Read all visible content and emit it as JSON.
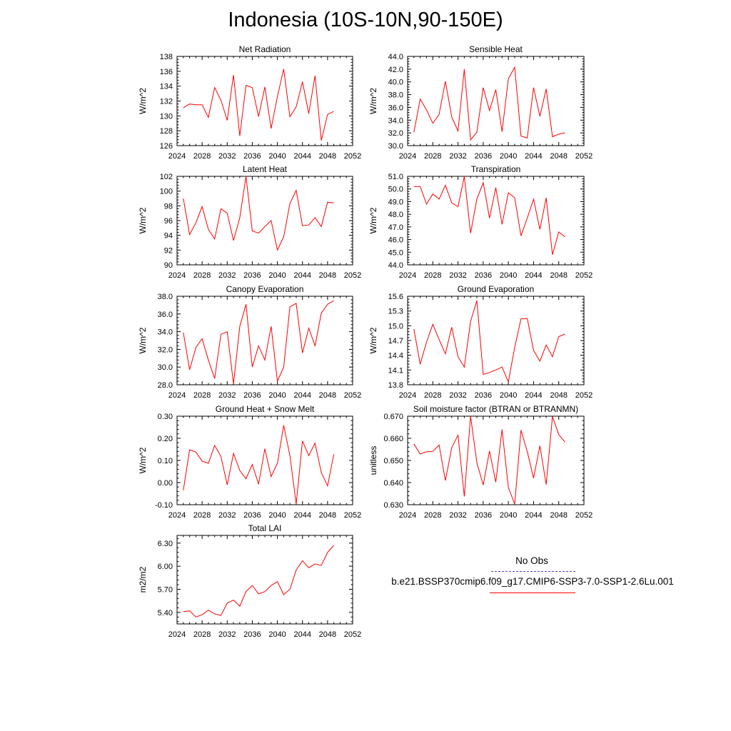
{
  "page_title": "Indonesia (10S-10N,90-150E)",
  "legend": {
    "obs_label": "No Obs",
    "obs_color": "#4a4ab0",
    "obs_style": "dashed",
    "run_label": "b.e21.BSSP370cmip6.f09_g17.CMIP6-SSP3-7.0-SSP1-2.6Lu.001",
    "run_color": "#ff0000"
  },
  "chart_data": [
    {
      "type": "line",
      "title": "Net Radiation",
      "ylabel": "W/m^2",
      "xlim": [
        2024,
        2052
      ],
      "xticks": [
        2024,
        2028,
        2032,
        2036,
        2040,
        2044,
        2048,
        2052
      ],
      "ylim": [
        126,
        138
      ],
      "yticks": [
        "126",
        "128",
        "130",
        "132",
        "134",
        "136",
        "138"
      ],
      "x": [
        2025,
        2026,
        2027,
        2028,
        2029,
        2030,
        2031,
        2032,
        2033,
        2034,
        2035,
        2036,
        2037,
        2038,
        2039,
        2040,
        2041,
        2042,
        2043,
        2044,
        2045,
        2046,
        2047,
        2048,
        2049
      ],
      "series": [
        {
          "values": [
            131.1,
            131.6,
            131.5,
            131.5,
            129.8,
            133.8,
            132.1,
            129.4,
            135.5,
            127.3,
            134.1,
            133.8,
            129.9,
            133.9,
            128.3,
            132.6,
            136.3,
            129.9,
            131.2,
            134.6,
            130.3,
            135.4,
            126.7,
            130.2,
            130.6
          ],
          "color": "#ff0000"
        }
      ]
    },
    {
      "type": "line",
      "title": "Sensible Heat",
      "ylabel": "W/m^2",
      "xlim": [
        2024,
        2052
      ],
      "xticks": [
        2024,
        2028,
        2032,
        2036,
        2040,
        2044,
        2048,
        2052
      ],
      "ylim": [
        30,
        44
      ],
      "yticks": [
        "30.0",
        "32.0",
        "34.0",
        "36.0",
        "38.0",
        "40.0",
        "42.0",
        "44.0"
      ],
      "x": [
        2025,
        2026,
        2027,
        2028,
        2029,
        2030,
        2031,
        2032,
        2033,
        2034,
        2035,
        2036,
        2037,
        2038,
        2039,
        2040,
        2041,
        2042,
        2043,
        2044,
        2045,
        2046,
        2047,
        2048,
        2049
      ],
      "series": [
        {
          "values": [
            32.1,
            37.3,
            35.6,
            33.5,
            34.9,
            40.1,
            34.5,
            32.3,
            42.0,
            30.9,
            32.1,
            39.1,
            35.5,
            38.8,
            32.2,
            40.5,
            42.3,
            31.5,
            31.2,
            39.1,
            34.6,
            38.9,
            31.4,
            31.8,
            32.0
          ],
          "color": "#ff0000"
        }
      ]
    },
    {
      "type": "line",
      "title": "Latent Heat",
      "ylabel": "W/m^2",
      "xlim": [
        2024,
        2052
      ],
      "xticks": [
        2024,
        2028,
        2032,
        2036,
        2040,
        2044,
        2048,
        2052
      ],
      "ylim": [
        90,
        102
      ],
      "yticks": [
        "90",
        "92",
        "94",
        "96",
        "98",
        "100",
        "102"
      ],
      "x": [
        2025,
        2026,
        2027,
        2028,
        2029,
        2030,
        2031,
        2032,
        2033,
        2034,
        2035,
        2036,
        2037,
        2038,
        2039,
        2040,
        2041,
        2042,
        2043,
        2044,
        2045,
        2046,
        2047,
        2048,
        2049
      ],
      "series": [
        {
          "values": [
            99.0,
            94.1,
            95.7,
            97.9,
            94.8,
            93.5,
            97.6,
            97.0,
            93.3,
            96.4,
            102.0,
            94.6,
            94.3,
            95.2,
            96.0,
            92.0,
            93.8,
            98.3,
            100.1,
            95.3,
            95.4,
            96.4,
            95.2,
            98.5,
            98.4
          ],
          "color": "#ff0000"
        }
      ]
    },
    {
      "type": "line",
      "title": "Transpiration",
      "ylabel": "W/m^2",
      "xlim": [
        2024,
        2052
      ],
      "xticks": [
        2024,
        2028,
        2032,
        2036,
        2040,
        2044,
        2048,
        2052
      ],
      "ylim": [
        44,
        51
      ],
      "yticks": [
        "44.0",
        "45.0",
        "46.0",
        "47.0",
        "48.0",
        "49.0",
        "50.0",
        "51.0"
      ],
      "x": [
        2025,
        2026,
        2027,
        2028,
        2029,
        2030,
        2031,
        2032,
        2033,
        2034,
        2035,
        2036,
        2037,
        2038,
        2039,
        2040,
        2041,
        2042,
        2043,
        2044,
        2045,
        2046,
        2047,
        2048,
        2049
      ],
      "series": [
        {
          "values": [
            50.2,
            50.2,
            48.8,
            49.6,
            49.2,
            50.3,
            48.9,
            48.6,
            51.0,
            46.5,
            49.2,
            50.5,
            47.7,
            50.1,
            47.2,
            49.7,
            49.3,
            46.3,
            47.7,
            49.2,
            46.8,
            49.3,
            44.8,
            46.6,
            46.2
          ],
          "color": "#ff0000"
        }
      ]
    },
    {
      "type": "line",
      "title": "Canopy Evaporation",
      "ylabel": "W/m^2",
      "xlim": [
        2024,
        2052
      ],
      "xticks": [
        2024,
        2028,
        2032,
        2036,
        2040,
        2044,
        2048,
        2052
      ],
      "ylim": [
        28,
        38
      ],
      "yticks": [
        "28.0",
        "30.0",
        "32.0",
        "34.0",
        "36.0",
        "38.0"
      ],
      "x": [
        2025,
        2026,
        2027,
        2028,
        2029,
        2030,
        2031,
        2032,
        2033,
        2034,
        2035,
        2036,
        2037,
        2038,
        2039,
        2040,
        2041,
        2042,
        2043,
        2044,
        2045,
        2046,
        2047,
        2048,
        2049
      ],
      "series": [
        {
          "values": [
            33.9,
            29.7,
            32.2,
            33.2,
            30.8,
            28.7,
            33.7,
            34.0,
            28.1,
            34.6,
            37.1,
            30.0,
            32.4,
            30.8,
            34.6,
            28.4,
            30.0,
            36.8,
            37.2,
            31.6,
            34.4,
            32.4,
            36.1,
            37.1,
            37.5
          ],
          "color": "#ff0000"
        }
      ]
    },
    {
      "type": "line",
      "title": "Ground Evaporation",
      "ylabel": "W/m^2",
      "xlim": [
        2024,
        2052
      ],
      "xticks": [
        2024,
        2028,
        2032,
        2036,
        2040,
        2044,
        2048,
        2052
      ],
      "ylim": [
        13.8,
        15.6
      ],
      "yticks": [
        "13.8",
        "14.1",
        "14.4",
        "14.7",
        "15.0",
        "15.3",
        "15.6"
      ],
      "x": [
        2025,
        2026,
        2027,
        2028,
        2029,
        2030,
        2031,
        2032,
        2033,
        2034,
        2035,
        2036,
        2037,
        2038,
        2039,
        2040,
        2041,
        2042,
        2043,
        2044,
        2045,
        2046,
        2047,
        2048,
        2049
      ],
      "series": [
        {
          "values": [
            14.93,
            14.22,
            14.67,
            15.03,
            14.72,
            14.43,
            14.97,
            14.37,
            14.16,
            15.09,
            15.51,
            14.01,
            14.05,
            14.1,
            14.16,
            13.86,
            14.56,
            15.14,
            15.15,
            14.5,
            14.28,
            14.61,
            14.37,
            14.78,
            14.83
          ],
          "color": "#ff0000"
        }
      ]
    },
    {
      "type": "line",
      "title": "Ground Heat + Snow Melt",
      "ylabel": "W/m^2",
      "xlim": [
        2024,
        2052
      ],
      "xticks": [
        2024,
        2028,
        2032,
        2036,
        2040,
        2044,
        2048,
        2052
      ],
      "ylim": [
        -0.1,
        0.3
      ],
      "yticks": [
        "-0.10",
        "0.00",
        "0.10",
        "0.20",
        "0.30"
      ],
      "x": [
        2025,
        2026,
        2027,
        2028,
        2029,
        2030,
        2031,
        2032,
        2033,
        2034,
        2035,
        2036,
        2037,
        2038,
        2039,
        2040,
        2041,
        2042,
        2043,
        2044,
        2045,
        2046,
        2047,
        2048,
        2049
      ],
      "series": [
        {
          "values": [
            -0.035,
            0.148,
            0.138,
            0.097,
            0.087,
            0.168,
            0.118,
            -0.01,
            0.132,
            0.055,
            0.017,
            0.082,
            -0.007,
            0.153,
            0.027,
            0.087,
            0.259,
            0.122,
            -0.097,
            0.188,
            0.122,
            0.178,
            0.045,
            -0.015,
            0.128
          ],
          "color": "#ff0000"
        }
      ]
    },
    {
      "type": "line",
      "title": "Soil moisture factor (BTRAN or BTRANMN)",
      "ylabel": "unitless",
      "xlim": [
        2024,
        2052
      ],
      "xticks": [
        2024,
        2028,
        2032,
        2036,
        2040,
        2044,
        2048,
        2052
      ],
      "ylim": [
        0.63,
        0.67
      ],
      "yticks": [
        "0.630",
        "0.640",
        "0.650",
        "0.660",
        "0.670"
      ],
      "x": [
        2025,
        2026,
        2027,
        2028,
        2029,
        2030,
        2031,
        2032,
        2033,
        2034,
        2035,
        2036,
        2037,
        2038,
        2039,
        2040,
        2041,
        2042,
        2043,
        2044,
        2045,
        2046,
        2047,
        2048,
        2049
      ],
      "series": [
        {
          "values": [
            0.6575,
            0.6529,
            0.6539,
            0.6541,
            0.657,
            0.6409,
            0.6558,
            0.6614,
            0.6337,
            0.67,
            0.649,
            0.6389,
            0.6543,
            0.6402,
            0.664,
            0.6378,
            0.6303,
            0.6637,
            0.654,
            0.642,
            0.6566,
            0.6391,
            0.6698,
            0.6617,
            0.6583
          ],
          "color": "#ff0000"
        }
      ]
    },
    {
      "type": "line",
      "title": "Total LAI",
      "ylabel": "m2/m2",
      "xlim": [
        2024,
        2052
      ],
      "xticks": [
        2024,
        2028,
        2032,
        2036,
        2040,
        2044,
        2048,
        2052
      ],
      "ylim": [
        5.25,
        6.4
      ],
      "yticks": [
        "5.40",
        "5.70",
        "6.00",
        "6.30"
      ],
      "x": [
        2025,
        2026,
        2027,
        2028,
        2029,
        2030,
        2031,
        2032,
        2033,
        2034,
        2035,
        2036,
        2037,
        2038,
        2039,
        2040,
        2041,
        2042,
        2043,
        2044,
        2045,
        2046,
        2047,
        2048,
        2049
      ],
      "series": [
        {
          "values": [
            5.41,
            5.42,
            5.34,
            5.37,
            5.43,
            5.38,
            5.36,
            5.52,
            5.56,
            5.48,
            5.67,
            5.75,
            5.64,
            5.67,
            5.75,
            5.8,
            5.63,
            5.7,
            5.95,
            6.07,
            5.98,
            6.03,
            6.01,
            6.18,
            6.27
          ],
          "color": "#ff0000"
        }
      ]
    }
  ]
}
